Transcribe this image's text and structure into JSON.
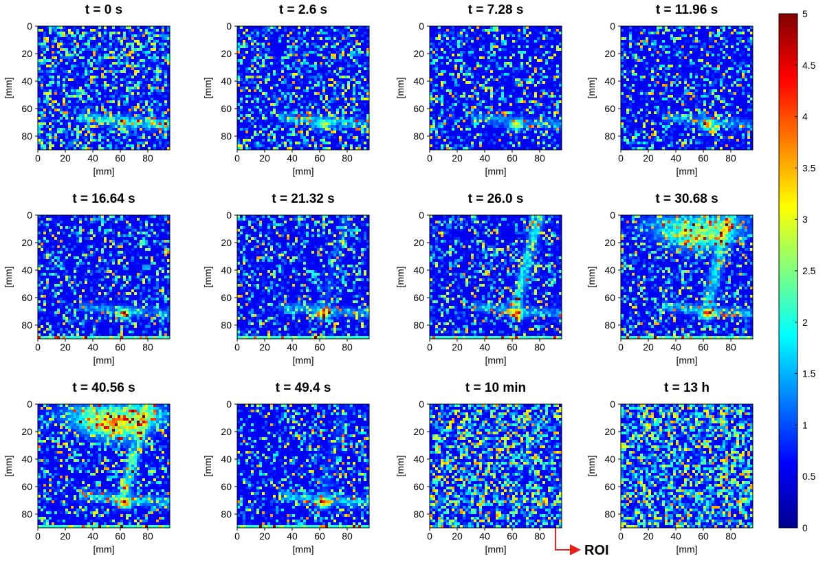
{
  "chart_data": [
    {
      "type": "heatmap",
      "title": "t = 0 s",
      "xlabel": "[mm]",
      "ylabel": "[mm]",
      "xlim": [
        0,
        96
      ],
      "ylim": [
        0,
        90
      ],
      "xticks": [
        0,
        20,
        40,
        60,
        80
      ],
      "yticks": [
        0,
        20,
        40,
        60,
        80
      ]
    },
    {
      "type": "heatmap",
      "title": "t = 2.6 s",
      "xlabel": "[mm]",
      "ylabel": "[mm]",
      "xlim": [
        0,
        96
      ],
      "ylim": [
        0,
        90
      ],
      "xticks": [
        0,
        20,
        40,
        60,
        80
      ],
      "yticks": [
        0,
        20,
        40,
        60,
        80
      ]
    },
    {
      "type": "heatmap",
      "title": "t = 7.28 s",
      "xlabel": "[mm]",
      "ylabel": "[mm]",
      "xlim": [
        0,
        96
      ],
      "ylim": [
        0,
        90
      ],
      "xticks": [
        0,
        20,
        40,
        60,
        80
      ],
      "yticks": [
        0,
        20,
        40,
        60,
        80
      ]
    },
    {
      "type": "heatmap",
      "title": "t = 11.96 s",
      "xlabel": "[mm]",
      "ylabel": "[mm]",
      "xlim": [
        0,
        96
      ],
      "ylim": [
        0,
        90
      ],
      "xticks": [
        0,
        20,
        40,
        60,
        80
      ],
      "yticks": [
        0,
        20,
        40,
        60,
        80
      ]
    },
    {
      "type": "heatmap",
      "title": "t = 16.64 s",
      "xlabel": "[mm]",
      "ylabel": "[mm]",
      "xlim": [
        0,
        96
      ],
      "ylim": [
        0,
        90
      ],
      "xticks": [
        0,
        20,
        40,
        60,
        80
      ],
      "yticks": [
        0,
        20,
        40,
        60,
        80
      ]
    },
    {
      "type": "heatmap",
      "title": "t = 21.32 s",
      "xlabel": "[mm]",
      "ylabel": "[mm]",
      "xlim": [
        0,
        96
      ],
      "ylim": [
        0,
        90
      ],
      "xticks": [
        0,
        20,
        40,
        60,
        80
      ],
      "yticks": [
        0,
        20,
        40,
        60,
        80
      ]
    },
    {
      "type": "heatmap",
      "title": "t = 26.0 s",
      "xlabel": "[mm]",
      "ylabel": "[mm]",
      "xlim": [
        0,
        96
      ],
      "ylim": [
        0,
        90
      ],
      "xticks": [
        0,
        20,
        40,
        60,
        80
      ],
      "yticks": [
        0,
        20,
        40,
        60,
        80
      ]
    },
    {
      "type": "heatmap",
      "title": "t = 30.68 s",
      "xlabel": "[mm]",
      "ylabel": "[mm]",
      "xlim": [
        0,
        96
      ],
      "ylim": [
        0,
        90
      ],
      "xticks": [
        0,
        20,
        40,
        60,
        80
      ],
      "yticks": [
        0,
        20,
        40,
        60,
        80
      ]
    },
    {
      "type": "heatmap",
      "title": "t = 40.56 s",
      "xlabel": "[mm]",
      "ylabel": "[mm]",
      "xlim": [
        0,
        96
      ],
      "ylim": [
        0,
        90
      ],
      "xticks": [
        0,
        20,
        40,
        60,
        80
      ],
      "yticks": [
        0,
        20,
        40,
        60,
        80
      ]
    },
    {
      "type": "heatmap",
      "title": "t = 49.4 s",
      "xlabel": "[mm]",
      "ylabel": "[mm]",
      "xlim": [
        0,
        96
      ],
      "ylim": [
        0,
        90
      ],
      "xticks": [
        0,
        20,
        40,
        60,
        80
      ],
      "yticks": [
        0,
        20,
        40,
        60,
        80
      ]
    },
    {
      "type": "heatmap",
      "title": "t = 10 min",
      "xlabel": "[mm]",
      "ylabel": "[mm]",
      "xlim": [
        0,
        96
      ],
      "ylim": [
        0,
        90
      ],
      "xticks": [
        0,
        20,
        40,
        60,
        80
      ],
      "yticks": [
        0,
        20,
        40,
        60,
        80
      ]
    },
    {
      "type": "heatmap",
      "title": "t = 13 h",
      "xlabel": "[mm]",
      "ylabel": "[mm]",
      "xlim": [
        0,
        96
      ],
      "ylim": [
        0,
        90
      ],
      "xticks": [
        0,
        20,
        40,
        60,
        80
      ],
      "yticks": [
        0,
        20,
        40,
        60,
        80
      ]
    }
  ],
  "colorbar": {
    "lim": [
      0,
      5
    ],
    "ticks": [
      0,
      0.5,
      1,
      1.5,
      2,
      2.5,
      3,
      3.5,
      4,
      4.5,
      5
    ]
  },
  "annotation": "ROI"
}
